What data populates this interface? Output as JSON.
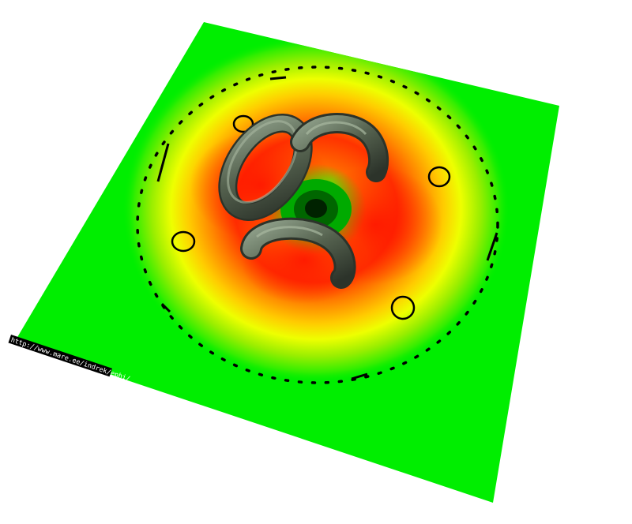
{
  "credit": {
    "text": "http://www.mare.ee/indrek/ephi/"
  },
  "colors": {
    "background": "#ffffff",
    "plane": "#00ee00",
    "field_hot": "#ff2200",
    "field_warm": "#ff8800",
    "field_yellow": "#eeee00",
    "field_center": "#003300",
    "torus": "#556655",
    "markers": "#000000",
    "credit_bg": "#000000",
    "credit_fg": "#ffffff"
  }
}
